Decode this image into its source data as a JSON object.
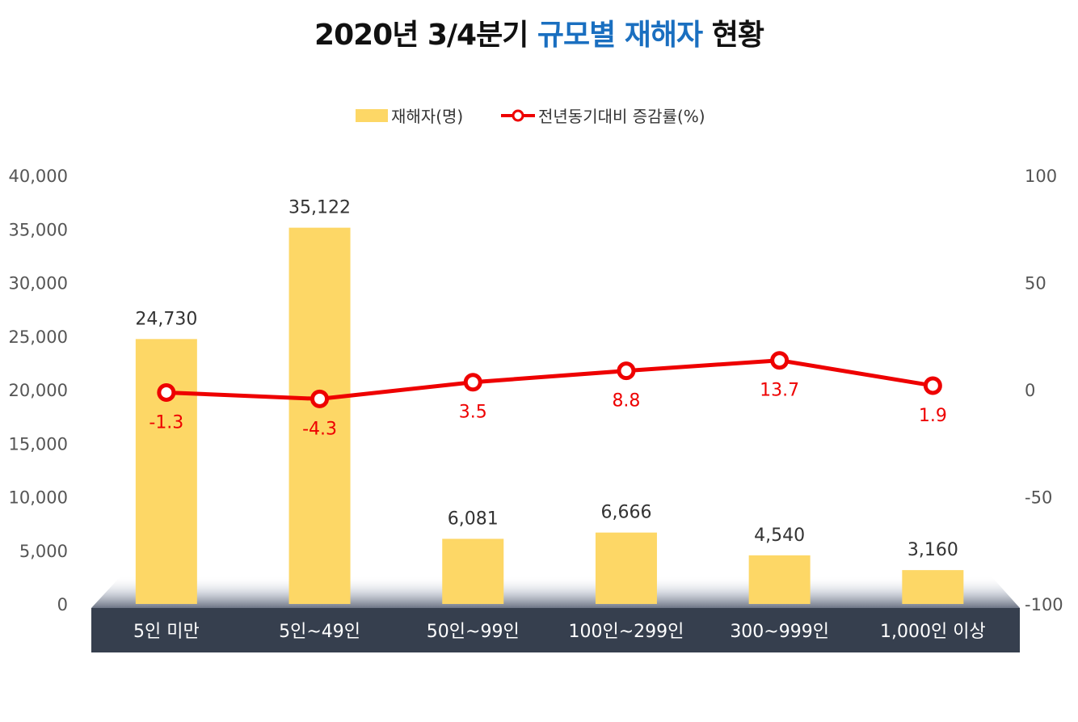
{
  "title": {
    "prefix": "2020년 3/4분기",
    "highlight": "규모별 재해자",
    "suffix": "현황"
  },
  "colors": {
    "bar": "#FDD766",
    "line": "#EE0000",
    "axis_band": "#363F4E",
    "highlight_text": "#1A6FC0"
  },
  "chart_data": {
    "type": "bar",
    "categories": [
      "5인 미만",
      "5인~49인",
      "50인~99인",
      "100인~299인",
      "300~999인",
      "1,000인 이상"
    ],
    "series": [
      {
        "name": "재해자(명)",
        "type": "bar",
        "axis": "left",
        "values": [
          24730,
          35122,
          6081,
          6666,
          4540,
          3160
        ],
        "labels": [
          "24,730",
          "35,122",
          "6,081",
          "6,666",
          "4,540",
          "3,160"
        ]
      },
      {
        "name": "전년동기대비 증감률(%)",
        "type": "line",
        "axis": "right",
        "values": [
          -1.3,
          -4.3,
          3.5,
          8.8,
          13.7,
          1.9
        ],
        "labels": [
          "-1.3",
          "-4.3",
          "3.5",
          "8.8",
          "13.7",
          "1.9"
        ]
      }
    ],
    "y_left": {
      "lim": [
        0,
        40000
      ],
      "ticks": [
        "0",
        "5,000",
        "10,000",
        "15,000",
        "20,000",
        "25,000",
        "30,000",
        "35,000",
        "40,000"
      ]
    },
    "y_right": {
      "lim": [
        -100,
        100
      ],
      "ticks": [
        "-100",
        "-50",
        "0",
        "50",
        "100"
      ]
    },
    "legend_position": "top-center",
    "grid": false
  }
}
